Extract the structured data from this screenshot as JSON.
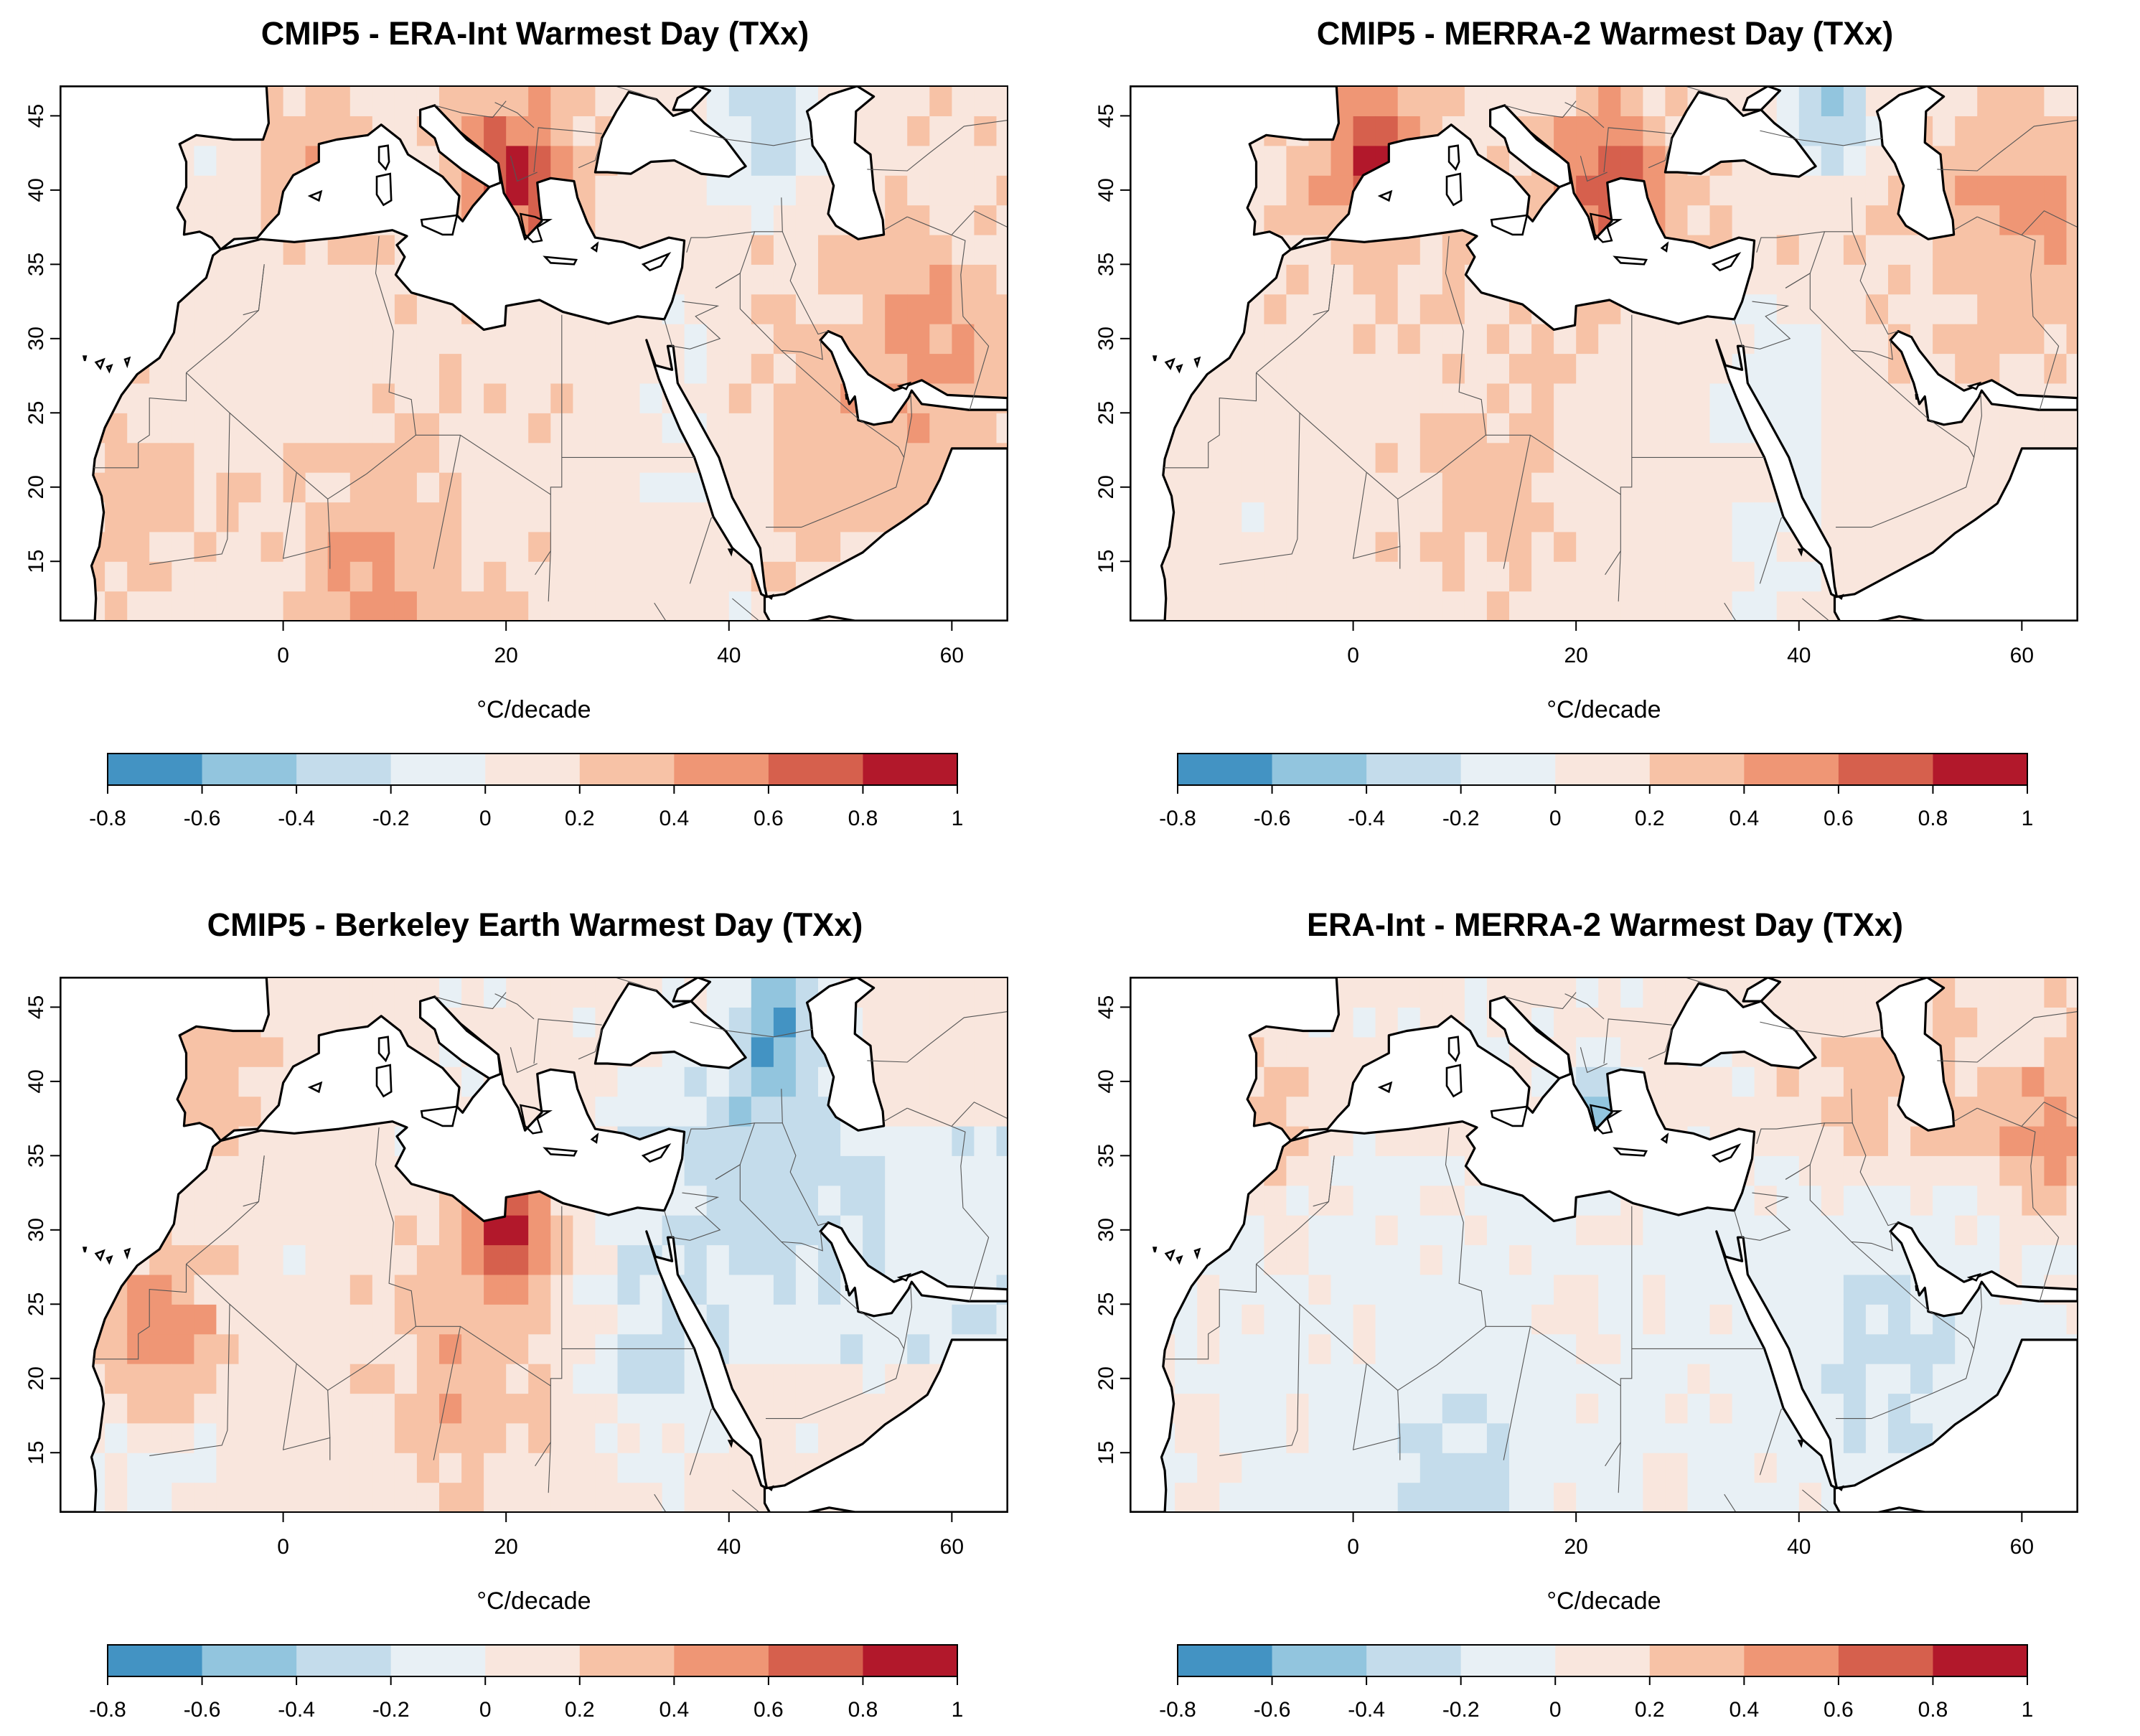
{
  "panels": [
    {
      "title": "CMIP5 - ERA-Int   Warmest Day (TXx)",
      "units_label": "°C/decade",
      "hotspots": [
        {
          "lon": 21,
          "lat": 41,
          "r": 5,
          "v": 0.85
        },
        {
          "lon": 3,
          "lat": 42,
          "r": 5,
          "v": 0.4
        },
        {
          "lon": 8,
          "lat": 14,
          "r": 7,
          "v": 0.45
        },
        {
          "lon": 50,
          "lat": 24,
          "r": 14,
          "v": 0.3
        },
        {
          "lon": 38,
          "lat": 22,
          "r": 5,
          "v": -0.15
        },
        {
          "lon": 44,
          "lat": 44,
          "r": 4,
          "v": -0.45
        },
        {
          "lon": 60,
          "lat": 30,
          "r": 6,
          "v": 0.35
        },
        {
          "lon": -14,
          "lat": 20,
          "r": 8,
          "v": 0.3
        }
      ]
    },
    {
      "title": "CMIP5 - MERRA-2   Warmest Day (TXx)",
      "units_label": "°C/decade",
      "hotspots": [
        {
          "lon": 2,
          "lat": 42,
          "r": 5,
          "v": 0.8
        },
        {
          "lon": 23,
          "lat": 41,
          "r": 5,
          "v": 0.8
        },
        {
          "lon": 60,
          "lat": 38,
          "r": 7,
          "v": 0.5
        },
        {
          "lon": 43,
          "lat": 45,
          "r": 4,
          "v": -0.4
        },
        {
          "lon": 38,
          "lat": 28,
          "r": 5,
          "v": -0.1
        },
        {
          "lon": 12,
          "lat": 21,
          "r": 8,
          "v": 0.3
        }
      ]
    },
    {
      "title": "CMIP5 - Berkeley Earth   Warmest Day (TXx)",
      "units_label": "°C/decade",
      "hotspots": [
        {
          "lon": 20,
          "lat": 30,
          "r": 4,
          "v": 0.85
        },
        {
          "lon": -11,
          "lat": 23,
          "r": 5,
          "v": 0.6
        },
        {
          "lon": 16,
          "lat": 20,
          "r": 8,
          "v": 0.35
        },
        {
          "lon": 42,
          "lat": 36,
          "r": 8,
          "v": -0.35
        },
        {
          "lon": 44,
          "lat": 44,
          "r": 4,
          "v": -0.45
        },
        {
          "lon": 33,
          "lat": 21,
          "r": 5,
          "v": -0.3
        },
        {
          "lon": -6,
          "lat": 41,
          "r": 5,
          "v": 0.35
        }
      ]
    },
    {
      "title": "ERA-Int - MERRA-2   Warmest Day (TXx)",
      "units_label": "°C/decade",
      "hotspots": [
        {
          "lon": 22,
          "lat": 38,
          "r": 3,
          "v": -0.55
        },
        {
          "lon": 62,
          "lat": 36,
          "r": 5,
          "v": 0.5
        },
        {
          "lon": 8,
          "lat": 14,
          "r": 7,
          "v": -0.3
        },
        {
          "lon": 48,
          "lat": 22,
          "r": 9,
          "v": -0.25
        },
        {
          "lon": 46,
          "lat": 39,
          "r": 6,
          "v": 0.3
        },
        {
          "lon": -8,
          "lat": 37,
          "r": 5,
          "v": 0.35
        }
      ]
    }
  ],
  "colorbar": {
    "ticks": [
      "-0.8",
      "-0.6",
      "-0.4",
      "-0.2",
      "0",
      "0.2",
      "0.4",
      "0.6",
      "0.8",
      "1"
    ],
    "colors": [
      "#4393c3",
      "#92c5de",
      "#c4dceb",
      "#e8f0f5",
      "#f9e6dd",
      "#f7c2a6",
      "#ef9675",
      "#d6604d",
      "#b2182b"
    ]
  },
  "axes": {
    "xticks": [
      "0",
      "20",
      "40",
      "60"
    ],
    "yticks": [
      "15",
      "20",
      "25",
      "30",
      "35",
      "40",
      "45"
    ],
    "lon_range": [
      -20,
      65
    ],
    "lat_range": [
      11,
      47
    ]
  }
}
